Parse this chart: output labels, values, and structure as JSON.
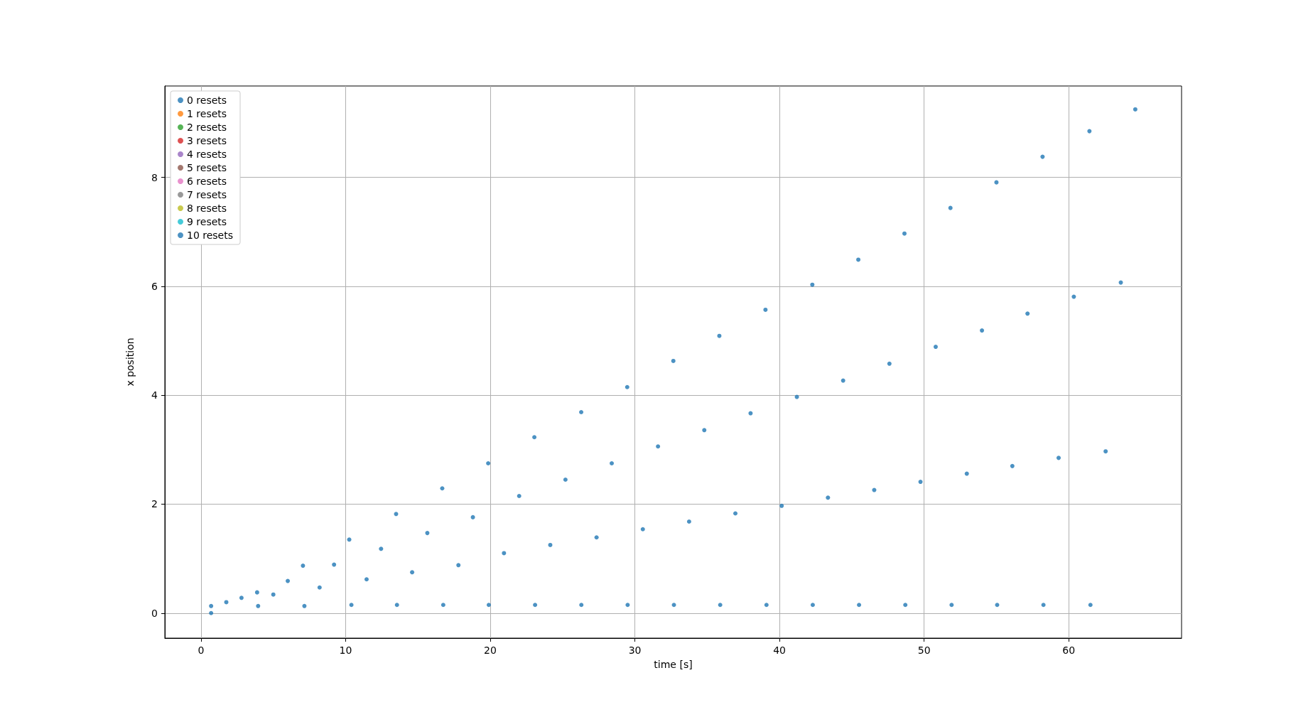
{
  "chart_data": {
    "type": "scatter",
    "xlabel": "time [s]",
    "ylabel": "x position",
    "xlim": [
      -2.5,
      67.8
    ],
    "ylim": [
      -0.46,
      9.68
    ],
    "xticks": [
      0,
      10,
      20,
      30,
      40,
      50,
      60
    ],
    "yticks": [
      0,
      2,
      4,
      6,
      8
    ],
    "grid": true,
    "legend": "top left",
    "marker": "circle",
    "series": [
      {
        "name": "0 resets",
        "color": "#1f77b4"
      },
      {
        "name": "1 resets",
        "color": "#ff7f0e"
      },
      {
        "name": "2 resets",
        "color": "#2ca02c"
      },
      {
        "name": "3 resets",
        "color": "#d62728"
      },
      {
        "name": "4 resets",
        "color": "#9467bd"
      },
      {
        "name": "5 resets",
        "color": "#8c564b"
      },
      {
        "name": "6 resets",
        "color": "#e377c2"
      },
      {
        "name": "7 resets",
        "color": "#7f7f7f"
      },
      {
        "name": "8 resets",
        "color": "#bcbd22"
      },
      {
        "name": "9 resets",
        "color": "#17becf"
      },
      {
        "name": "10 resets",
        "color": "#1f77b4",
        "x": [
          0.7,
          0.7,
          1.75,
          2.8,
          3.88,
          3.95,
          5.0,
          6.0,
          7.05,
          7.15,
          8.2,
          9.2,
          10.25,
          10.4,
          11.45,
          12.45,
          13.49,
          13.55,
          14.6,
          15.65,
          16.68,
          16.75,
          17.8,
          18.8,
          19.86,
          19.9,
          20.95,
          22.0,
          23.05,
          23.1,
          24.15,
          25.2,
          26.29,
          26.3,
          27.35,
          28.4,
          29.47,
          29.5,
          30.55,
          31.6,
          32.66,
          32.7,
          33.75,
          34.8,
          35.84,
          35.9,
          36.95,
          38.0,
          39.03,
          39.1,
          40.15,
          41.2,
          42.27,
          42.3,
          43.35,
          44.4,
          45.45,
          45.5,
          46.55,
          47.6,
          48.64,
          48.7,
          49.75,
          50.8,
          51.82,
          51.9,
          52.95,
          54.0,
          55.0,
          55.05,
          56.1,
          57.15,
          58.19,
          58.25,
          59.3,
          60.35,
          61.43,
          61.5,
          62.55,
          63.6,
          64.6
        ],
        "values": [
          0,
          0.13,
          0.2,
          0.28,
          0.38,
          0.13,
          0.34,
          0.59,
          0.87,
          0.13,
          0.47,
          0.89,
          1.35,
          0.15,
          0.62,
          1.18,
          1.82,
          0.15,
          0.75,
          1.47,
          2.29,
          0.15,
          0.88,
          1.76,
          2.75,
          0.15,
          1.1,
          2.15,
          3.23,
          0.15,
          1.25,
          2.45,
          3.69,
          0.15,
          1.39,
          2.75,
          4.15,
          0.15,
          1.54,
          3.06,
          4.63,
          0.15,
          1.68,
          3.36,
          5.09,
          0.15,
          1.83,
          3.67,
          5.57,
          0.15,
          1.97,
          3.97,
          6.03,
          0.15,
          2.12,
          4.27,
          6.49,
          0.15,
          2.26,
          4.58,
          6.97,
          0.15,
          2.41,
          4.89,
          7.44,
          0.15,
          2.56,
          5.19,
          7.91,
          0.15,
          2.7,
          5.5,
          8.38,
          0.15,
          2.85,
          5.81,
          8.85,
          0.15,
          2.97,
          6.07,
          9.25
        ]
      }
    ]
  }
}
